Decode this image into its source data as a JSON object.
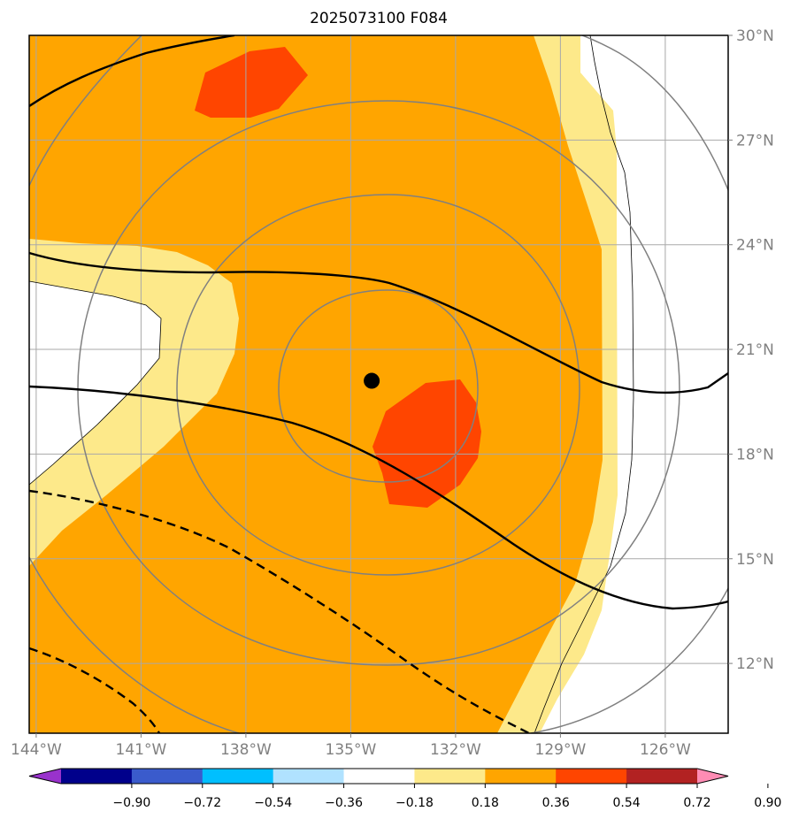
{
  "title": "2025073100 F084",
  "map": {
    "extent": {
      "lon_min": -144.2,
      "lon_max": -124.2,
      "lat_min": 10.0,
      "lat_max": 30.0
    },
    "storm_center": {
      "lon": -134.4,
      "lat": 20.1
    },
    "lon_ticks": [
      "144°W",
      "141°W",
      "138°W",
      "135°W",
      "132°W",
      "129°W",
      "126°W"
    ],
    "lon_tick_values": [
      -144,
      -141,
      -138,
      -135,
      -132,
      -129,
      -126
    ],
    "lat_ticks": [
      "30°N",
      "27°N",
      "24°N",
      "21°N",
      "18°N",
      "15°N",
      "12°N"
    ],
    "lat_tick_values": [
      30,
      27,
      24,
      21,
      18,
      15,
      12
    ],
    "colors": {
      "fill_036_054": "#fde98a",
      "fill_054_072": "#ffa500",
      "fill_072_090": "#ff4500",
      "range_rings": "#808080",
      "gridlines": "#a9a9a9",
      "contours": "#000000"
    }
  },
  "colorbar": {
    "tick_labels": [
      "−0.90",
      "−0.72",
      "−0.54",
      "−0.36",
      "−0.18",
      "0.18",
      "0.36",
      "0.54",
      "0.72",
      "0.90"
    ],
    "colors": [
      "#9932cc",
      "#00008b",
      "#3a5bcc",
      "#00bfff",
      "#b0e2ff",
      "#ffffff",
      "#fde98a",
      "#ffa500",
      "#ff4500",
      "#b22222",
      "#ff8cb4"
    ]
  }
}
